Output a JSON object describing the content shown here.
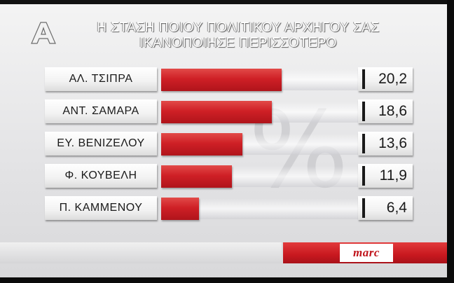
{
  "title_lines": [
    "Η ΣΤΑΣΗ ΠΟΙΟΥ ΠΟΛΙΤΙΚΟΥ ΑΡΧΗΓΟΥ ΣΑΣ",
    "ΙΚΑΝΟΠΟΙΗΣΕ ΠΕΡΙΣΣΟΤΕΡΟ"
  ],
  "watermark": "%",
  "brand": "marc",
  "colors": {
    "bar": "#cf2026",
    "footer": "#c8181f",
    "title": "#ffffff"
  },
  "logo_icon": "alpha-tv-logo-icon",
  "chart_data": {
    "type": "bar",
    "orientation": "horizontal",
    "title": "Η ΣΤΑΣΗ ΠΟΙΟΥ ΠΟΛΙΤΙΚΟΥ ΑΡΧΗΓΟΥ ΣΑΣ ΙΚΑΝΟΠΟΙΗΣΕ ΠΕΡΙΣΣΟΤΕΡΟ",
    "categories": [
      "ΑΛ. ΤΣΙΠΡΑ",
      "ΑΝΤ. ΣΑΜΑΡΑ",
      "ΕΥ. ΒΕΝΙΖΕΛΟΥ",
      "Φ. ΚΟΥΒΕΛΗ",
      "Π. ΚΑΜΜΕΝΟΥ"
    ],
    "values": [
      20.2,
      18.6,
      13.6,
      11.9,
      6.4
    ],
    "value_labels": [
      "20,2",
      "18,6",
      "13,6",
      "11,9",
      "6,4"
    ],
    "xlim": [
      0,
      40
    ],
    "grid": false,
    "legend": "none"
  }
}
